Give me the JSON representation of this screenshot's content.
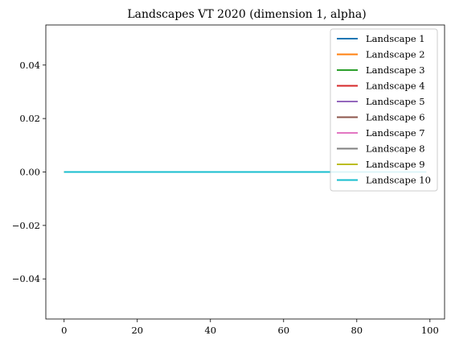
{
  "chart_data": {
    "type": "line",
    "title": "Landscapes VT 2020 (dimension 1, alpha)",
    "xlabel": "",
    "ylabel": "",
    "xlim": [
      -5,
      104
    ],
    "ylim": [
      -0.055,
      0.055
    ],
    "xticks": [
      0,
      20,
      40,
      60,
      80,
      100
    ],
    "xtick_labels": [
      "0",
      "20",
      "40",
      "60",
      "80",
      "100"
    ],
    "yticks": [
      0.04,
      0.02,
      0.0,
      -0.02,
      -0.04
    ],
    "ytick_labels": [
      "0.04",
      "0.02",
      "0.00",
      "−0.02",
      "−0.04"
    ],
    "grid": false,
    "legend_position": "upper-right",
    "x": [
      0,
      99
    ],
    "series": [
      {
        "name": "Landscape 1",
        "color": "#1f77b4",
        "values": [
          0,
          0
        ]
      },
      {
        "name": "Landscape 2",
        "color": "#ff7f0e",
        "values": [
          0,
          0
        ]
      },
      {
        "name": "Landscape 3",
        "color": "#2ca02c",
        "values": [
          0,
          0
        ]
      },
      {
        "name": "Landscape 4",
        "color": "#d62728",
        "values": [
          0,
          0
        ]
      },
      {
        "name": "Landscape 5",
        "color": "#9467bd",
        "values": [
          0,
          0
        ]
      },
      {
        "name": "Landscape 6",
        "color": "#8c564b",
        "values": [
          0,
          0
        ]
      },
      {
        "name": "Landscape 7",
        "color": "#e377c2",
        "values": [
          0,
          0
        ]
      },
      {
        "name": "Landscape 8",
        "color": "#7f7f7f",
        "values": [
          0,
          0
        ]
      },
      {
        "name": "Landscape 9",
        "color": "#bcbd22",
        "values": [
          0,
          0
        ]
      },
      {
        "name": "Landscape 10",
        "color": "#17becf",
        "values": [
          0,
          0
        ]
      }
    ]
  }
}
